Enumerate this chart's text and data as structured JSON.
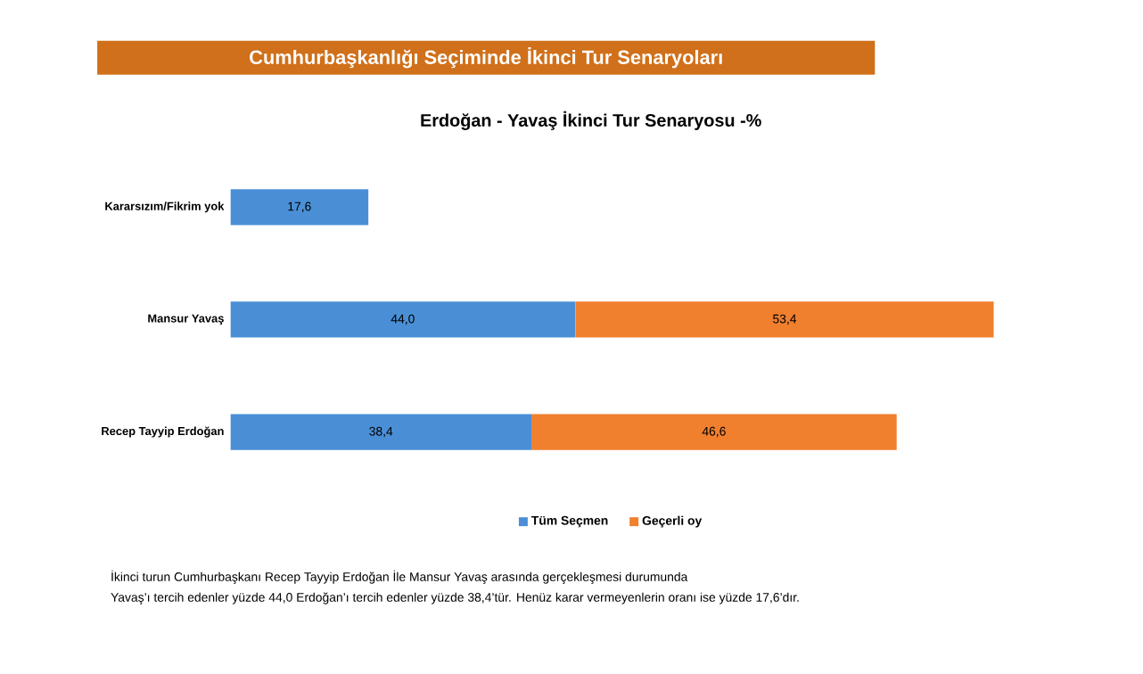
{
  "chart_data": {
    "type": "bar",
    "orientation": "horizontal",
    "stacked": true,
    "title": "Cumhurbaşkanlığı Seçiminde İkinci Tur Senaryoları",
    "subtitle": "Erdoğan - Yavaş İkinci Tur Senaryosu -%",
    "categories": [
      "Kararsızım/Fikrim yok",
      "Mansur Yavaş",
      "Recep Tayyip Erdoğan"
    ],
    "series": [
      {
        "name": "Tüm Seçmen",
        "color": "#4a8fd6",
        "values": [
          17.6,
          44.0,
          38.4
        ],
        "value_labels": [
          "17,6",
          "44,0",
          "38,4"
        ]
      },
      {
        "name": "Geçerli oy",
        "color": "#f07f2e",
        "values": [
          null,
          53.4,
          46.6
        ],
        "value_labels": [
          null,
          "53,4",
          "46,6"
        ]
      }
    ],
    "legend": "bottom",
    "annotations": [
      "İkinci turun  Cumhurbaşkanı  Recep Tayyip Erdoğan İle Mansur Yavaş arasında gerçekleşmesi durumunda",
      "Yavaş’ı tercih edenler yüzde 44,0 Erdoğan’ı tercih edenler yüzde 38,4’tür.  Henüz karar vermeyenlerin oranı ise yüzde 17,6’dır."
    ]
  }
}
